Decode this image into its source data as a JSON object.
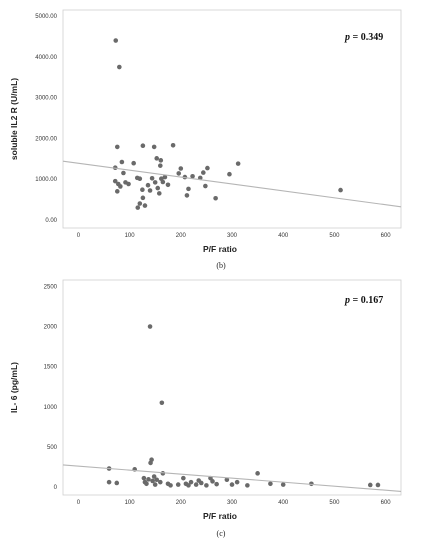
{
  "chart_data": [
    {
      "type": "scatter",
      "title": "",
      "annotation": {
        "italic": "p",
        "text": " = 0.349"
      },
      "xlabel": "P/F ratio",
      "ylabel": "soluble IL2 R (U/mL)",
      "caption": "(b)",
      "xlim": [
        -30,
        630
      ],
      "ylim": [
        -200,
        5150
      ],
      "xticks": [
        "0",
        "100",
        "200",
        "300",
        "400",
        "500",
        "600"
      ],
      "xtick_values": [
        0,
        100,
        200,
        300,
        400,
        500,
        600
      ],
      "yticks": [
        "0.00",
        "1000.00",
        "2000.00",
        "3000.00",
        "4000.00",
        "5000.00"
      ],
      "ytick_values": [
        0,
        1000,
        2000,
        3000,
        4000,
        5000
      ],
      "grid": false,
      "point_color": "#6a6a6a",
      "line_color": "#b5b5b5",
      "fit_line": {
        "x": [
          -30,
          630
        ],
        "y": [
          1440,
          320
        ]
      },
      "points": [
        {
          "x": 73,
          "y": 4400
        },
        {
          "x": 80,
          "y": 3750
        },
        {
          "x": 72,
          "y": 1280
        },
        {
          "x": 76,
          "y": 1790
        },
        {
          "x": 85,
          "y": 1420
        },
        {
          "x": 72,
          "y": 950
        },
        {
          "x": 78,
          "y": 880
        },
        {
          "x": 82,
          "y": 820
        },
        {
          "x": 76,
          "y": 700
        },
        {
          "x": 88,
          "y": 1150
        },
        {
          "x": 92,
          "y": 920
        },
        {
          "x": 98,
          "y": 880
        },
        {
          "x": 108,
          "y": 1390
        },
        {
          "x": 115,
          "y": 1030
        },
        {
          "x": 120,
          "y": 1010
        },
        {
          "x": 125,
          "y": 740
        },
        {
          "x": 120,
          "y": 400
        },
        {
          "x": 116,
          "y": 300
        },
        {
          "x": 126,
          "y": 540
        },
        {
          "x": 130,
          "y": 350
        },
        {
          "x": 126,
          "y": 1820
        },
        {
          "x": 136,
          "y": 850
        },
        {
          "x": 140,
          "y": 720
        },
        {
          "x": 144,
          "y": 1020
        },
        {
          "x": 148,
          "y": 1790
        },
        {
          "x": 150,
          "y": 920
        },
        {
          "x": 153,
          "y": 1510
        },
        {
          "x": 155,
          "y": 780
        },
        {
          "x": 158,
          "y": 650
        },
        {
          "x": 160,
          "y": 1330
        },
        {
          "x": 161,
          "y": 1460
        },
        {
          "x": 162,
          "y": 1010
        },
        {
          "x": 165,
          "y": 930
        },
        {
          "x": 169,
          "y": 1050
        },
        {
          "x": 175,
          "y": 860
        },
        {
          "x": 185,
          "y": 1830
        },
        {
          "x": 196,
          "y": 1140
        },
        {
          "x": 200,
          "y": 1260
        },
        {
          "x": 208,
          "y": 1050
        },
        {
          "x": 212,
          "y": 600
        },
        {
          "x": 215,
          "y": 760
        },
        {
          "x": 223,
          "y": 1070
        },
        {
          "x": 238,
          "y": 1030
        },
        {
          "x": 244,
          "y": 1160
        },
        {
          "x": 248,
          "y": 830
        },
        {
          "x": 252,
          "y": 1270
        },
        {
          "x": 268,
          "y": 530
        },
        {
          "x": 295,
          "y": 1120
        },
        {
          "x": 312,
          "y": 1380
        },
        {
          "x": 512,
          "y": 730
        }
      ]
    },
    {
      "type": "scatter",
      "title": "",
      "annotation": {
        "italic": "p",
        "text": " = 0.167"
      },
      "xlabel": "P/F ratio",
      "ylabel": "IL- 6 (pg/mL)",
      "caption": "(c)",
      "xlim": [
        -30,
        630
      ],
      "ylim": [
        -100,
        2580
      ],
      "xticks": [
        "0",
        "100",
        "200",
        "300",
        "400",
        "500",
        "600"
      ],
      "xtick_values": [
        0,
        100,
        200,
        300,
        400,
        500,
        600
      ],
      "yticks": [
        "0",
        "500",
        "1000",
        "1500",
        "2000",
        "2500"
      ],
      "ytick_values": [
        0,
        500,
        1000,
        1500,
        2000,
        2500
      ],
      "grid": false,
      "point_color": "#6a6a6a",
      "line_color": "#b5b5b5",
      "fit_line": {
        "x": [
          -30,
          630
        ],
        "y": [
          275,
          -55
        ]
      },
      "points": [
        {
          "x": 140,
          "y": 2000
        },
        {
          "x": 163,
          "y": 1050
        },
        {
          "x": 60,
          "y": 230
        },
        {
          "x": 60,
          "y": 60
        },
        {
          "x": 75,
          "y": 50
        },
        {
          "x": 110,
          "y": 220
        },
        {
          "x": 128,
          "y": 110
        },
        {
          "x": 130,
          "y": 60
        },
        {
          "x": 133,
          "y": 40
        },
        {
          "x": 137,
          "y": 95
        },
        {
          "x": 141,
          "y": 300
        },
        {
          "x": 143,
          "y": 340
        },
        {
          "x": 145,
          "y": 75
        },
        {
          "x": 148,
          "y": 130
        },
        {
          "x": 150,
          "y": 30
        },
        {
          "x": 153,
          "y": 90
        },
        {
          "x": 160,
          "y": 60
        },
        {
          "x": 165,
          "y": 170
        },
        {
          "x": 175,
          "y": 40
        },
        {
          "x": 180,
          "y": 20
        },
        {
          "x": 195,
          "y": 30
        },
        {
          "x": 205,
          "y": 110
        },
        {
          "x": 210,
          "y": 40
        },
        {
          "x": 215,
          "y": 20
        },
        {
          "x": 220,
          "y": 60
        },
        {
          "x": 230,
          "y": 30
        },
        {
          "x": 235,
          "y": 80
        },
        {
          "x": 240,
          "y": 50
        },
        {
          "x": 250,
          "y": 20
        },
        {
          "x": 258,
          "y": 110
        },
        {
          "x": 262,
          "y": 70
        },
        {
          "x": 270,
          "y": 35
        },
        {
          "x": 290,
          "y": 90
        },
        {
          "x": 300,
          "y": 30
        },
        {
          "x": 310,
          "y": 60
        },
        {
          "x": 330,
          "y": 20
        },
        {
          "x": 350,
          "y": 170
        },
        {
          "x": 375,
          "y": 40
        },
        {
          "x": 400,
          "y": 30
        },
        {
          "x": 455,
          "y": 40
        },
        {
          "x": 570,
          "y": 25
        },
        {
          "x": 585,
          "y": 25
        }
      ]
    }
  ]
}
